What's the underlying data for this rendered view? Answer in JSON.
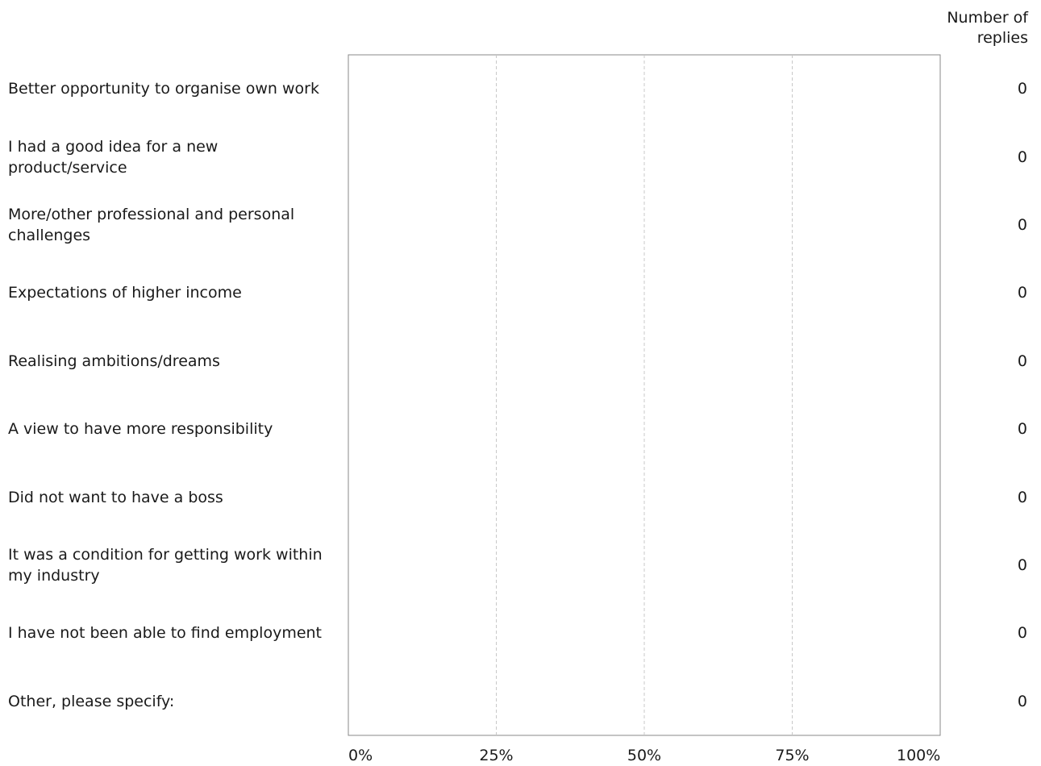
{
  "chart_data": {
    "type": "bar",
    "orientation": "horizontal",
    "categories": [
      "Better opportunity to organise own work",
      "I had a good idea for a new product/service",
      "More/other professional and personal challenges",
      "Expectations of higher income",
      "Realising ambitions/dreams",
      "A view to have more responsibility",
      "Did not want to have a boss",
      "It was a condition for getting work within my industry",
      "I have not been able to find employment",
      "Other, please specify:"
    ],
    "values": [
      0,
      0,
      0,
      0,
      0,
      0,
      0,
      0,
      0,
      0
    ],
    "counts": [
      "0",
      "0",
      "0",
      "0",
      "0",
      "0",
      "0",
      "0",
      "0",
      "0"
    ],
    "count_header": "Number of replies",
    "xlim": [
      0,
      100
    ],
    "x_ticks": [
      "0%",
      "25%",
      "50%",
      "75%",
      "100%"
    ],
    "grid": true,
    "title": "",
    "xlabel": "",
    "ylabel": ""
  },
  "colors": {
    "bar": "#4a7ab5",
    "axis": "#888888",
    "grid": "#c8c8c8",
    "text": "#1a1a1a"
  }
}
